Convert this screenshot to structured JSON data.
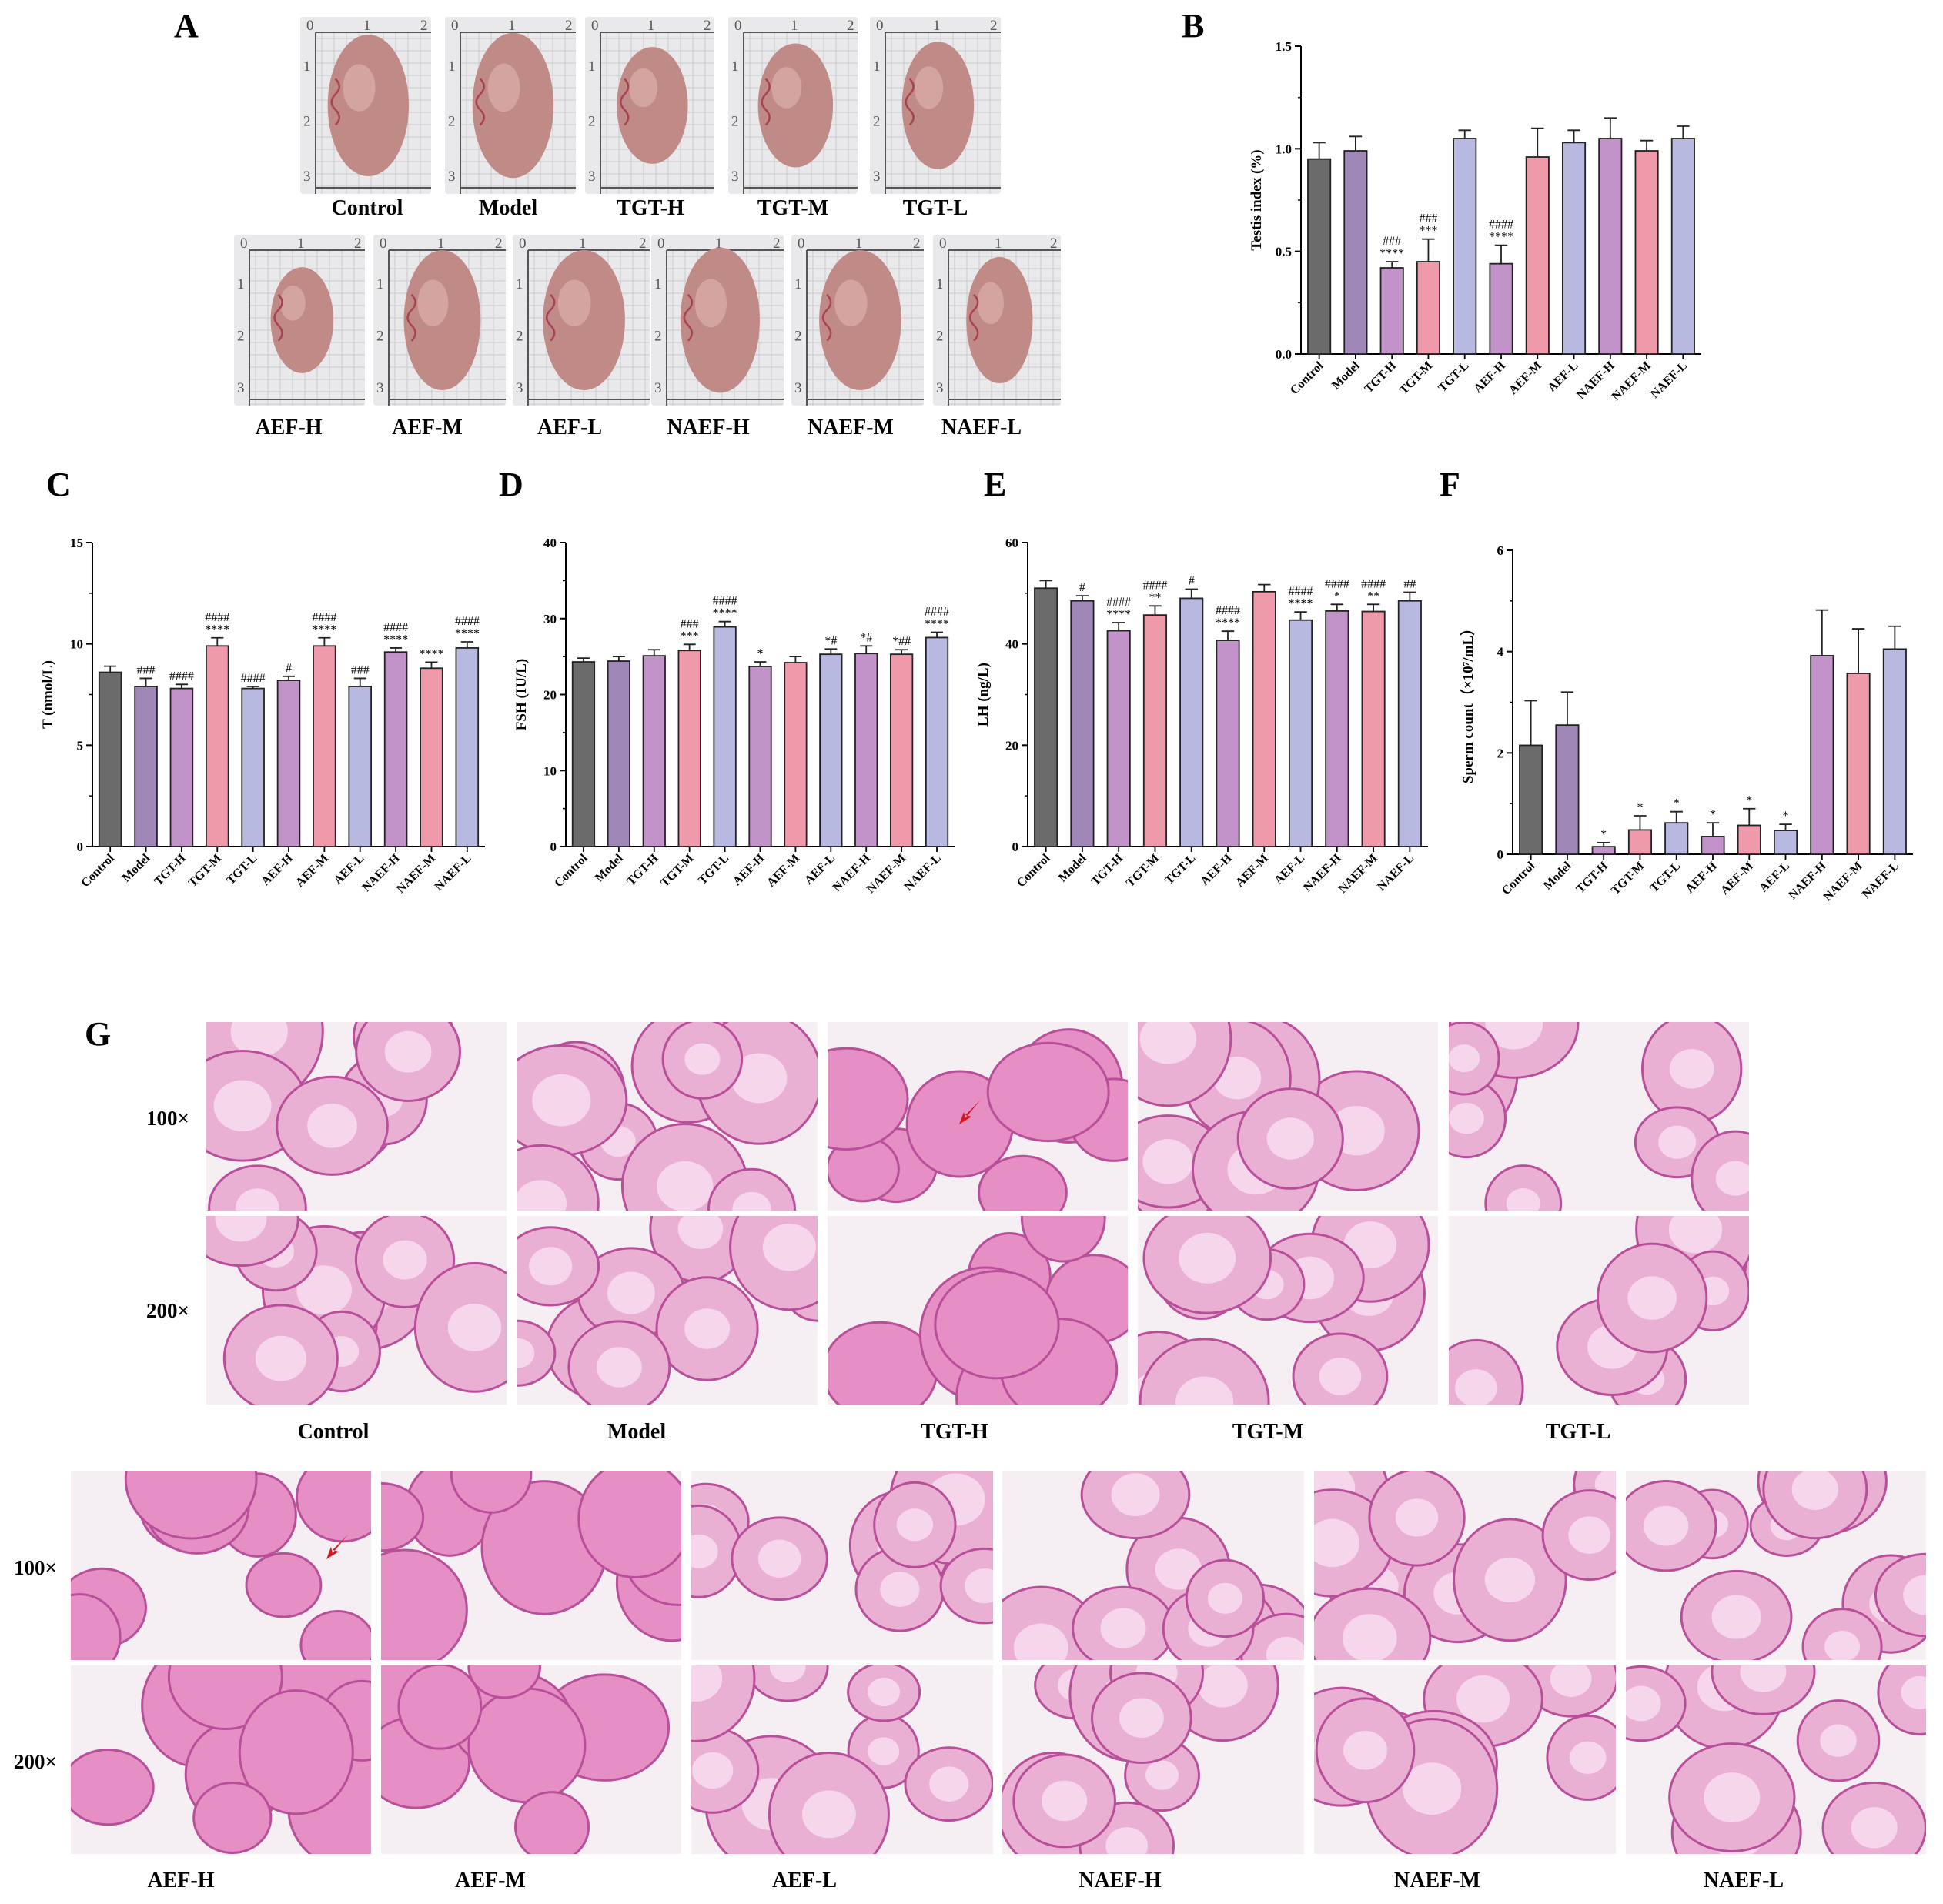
{
  "panel_a": {
    "letter": "A",
    "groups": [
      "Control",
      "Model",
      "TGT-H",
      "TGT-M",
      "TGT-L",
      "AEF-H",
      "AEF-M",
      "AEF-L",
      "NAEF-H",
      "NAEF-M",
      "NAEF-L"
    ],
    "scale_x": [
      "0",
      "1",
      "2"
    ],
    "scale_y": [
      "1",
      "2",
      "3"
    ]
  },
  "panel_g": {
    "letter": "G",
    "magnifications": [
      "100×",
      "200×"
    ],
    "groups": [
      "Control",
      "Model",
      "TGT-H",
      "TGT-M",
      "TGT-L",
      "AEF-H",
      "AEF-M",
      "AEF-L",
      "NAEF-H",
      "NAEF-M",
      "NAEF-L"
    ]
  },
  "colors": {
    "Control": "#6b6b6b",
    "Model": "#9f87b8",
    "TGT-H": "#c293c8",
    "TGT-M": "#ef9aaa",
    "TGT-L": "#b8b9e0",
    "AEF-H": "#c293c8",
    "AEF-M": "#ef9aaa",
    "AEF-L": "#b8b9e0",
    "NAEF-H": "#c293c8",
    "NAEF-M": "#ef9aaa",
    "NAEF-L": "#b8b9e0"
  },
  "chart_data": [
    {
      "id": "B",
      "letter": "B",
      "type": "bar",
      "ylabel": "Testis index (%)",
      "ylim": [
        0,
        1.5
      ],
      "yticks": [
        "0.0",
        "0.5",
        "1.0",
        "1.5"
      ],
      "categories": [
        "Control",
        "Model",
        "TGT-H",
        "TGT-M",
        "TGT-L",
        "AEF-H",
        "AEF-M",
        "AEF-L",
        "NAEF-H",
        "NAEF-M",
        "NAEF-L"
      ],
      "values": [
        0.95,
        0.99,
        0.42,
        0.45,
        1.05,
        0.44,
        0.96,
        1.03,
        1.05,
        0.99,
        1.05
      ],
      "errors": [
        0.08,
        0.07,
        0.03,
        0.11,
        0.04,
        0.09,
        0.14,
        0.06,
        0.1,
        0.05,
        0.06
      ],
      "annotations": [
        [
          "",
          ""
        ],
        [
          "",
          ""
        ],
        [
          "###",
          "****"
        ],
        [
          "###",
          "***"
        ],
        [
          "",
          ""
        ],
        [
          "####",
          "****"
        ],
        [
          "",
          ""
        ],
        [
          "",
          ""
        ],
        [
          "",
          ""
        ],
        [
          "",
          ""
        ],
        [
          "",
          ""
        ]
      ]
    },
    {
      "id": "C",
      "letter": "C",
      "type": "bar",
      "ylabel": "T (nmol/L)",
      "ylim": [
        0,
        15
      ],
      "yticks": [
        "0",
        "5",
        "10",
        "15"
      ],
      "categories": [
        "Control",
        "Model",
        "TGT-H",
        "TGT-M",
        "TGT-L",
        "AEF-H",
        "AEF-M",
        "AEF-L",
        "NAEF-H",
        "NAEF-M",
        "NAEF-L"
      ],
      "values": [
        8.6,
        7.9,
        7.8,
        9.9,
        7.8,
        8.2,
        9.9,
        7.9,
        9.6,
        8.8,
        9.8
      ],
      "errors": [
        0.3,
        0.4,
        0.2,
        0.4,
        0.1,
        0.2,
        0.4,
        0.4,
        0.2,
        0.3,
        0.3
      ],
      "annotations": [
        [
          "",
          ""
        ],
        [
          "",
          "###"
        ],
        [
          "",
          "####"
        ],
        [
          "####",
          "****"
        ],
        [
          "",
          "####"
        ],
        [
          "",
          "#"
        ],
        [
          "####",
          "****"
        ],
        [
          "",
          "###"
        ],
        [
          "####",
          "****"
        ],
        [
          "",
          "****"
        ],
        [
          "####",
          "****"
        ]
      ]
    },
    {
      "id": "D",
      "letter": "D",
      "type": "bar",
      "ylabel": "FSH (IU/L)",
      "ylim": [
        0,
        40
      ],
      "yticks": [
        "0",
        "10",
        "20",
        "30",
        "40"
      ],
      "categories": [
        "Control",
        "Model",
        "TGT-H",
        "TGT-M",
        "TGT-L",
        "AEF-H",
        "AEF-M",
        "AEF-L",
        "NAEF-H",
        "NAEF-M",
        "NAEF-L"
      ],
      "values": [
        24.3,
        24.4,
        25.1,
        25.8,
        28.9,
        23.7,
        24.2,
        25.3,
        25.4,
        25.3,
        27.5
      ],
      "errors": [
        0.5,
        0.6,
        0.8,
        0.8,
        0.7,
        0.6,
        0.8,
        0.7,
        1.0,
        0.6,
        0.7
      ],
      "annotations": [
        [
          "",
          ""
        ],
        [
          "",
          ""
        ],
        [
          "",
          ""
        ],
        [
          "###",
          "***"
        ],
        [
          "####",
          "****"
        ],
        [
          "",
          "*"
        ],
        [
          "",
          ""
        ],
        [
          "",
          "*#"
        ],
        [
          "",
          "*#"
        ],
        [
          "",
          "*##"
        ],
        [
          "####",
          "****"
        ]
      ]
    },
    {
      "id": "E",
      "letter": "E",
      "type": "bar",
      "ylabel": "LH (ng/L)",
      "ylim": [
        0,
        60
      ],
      "yticks": [
        "0",
        "20",
        "40",
        "60"
      ],
      "categories": [
        "Control",
        "Model",
        "TGT-H",
        "TGT-M",
        "TGT-L",
        "AEF-H",
        "AEF-M",
        "AEF-L",
        "NAEF-H",
        "NAEF-M",
        "NAEF-L"
      ],
      "values": [
        51.0,
        48.5,
        42.6,
        45.7,
        49.0,
        40.7,
        50.3,
        44.7,
        46.5,
        46.4,
        48.5
      ],
      "errors": [
        1.5,
        1.0,
        1.6,
        1.8,
        1.8,
        1.8,
        1.4,
        1.6,
        1.3,
        1.4,
        1.7
      ],
      "annotations": [
        [
          "",
          ""
        ],
        [
          "",
          "#"
        ],
        [
          "####",
          "****"
        ],
        [
          "####",
          "**"
        ],
        [
          "",
          "#"
        ],
        [
          "####",
          "****"
        ],
        [
          "",
          ""
        ],
        [
          "####",
          "****"
        ],
        [
          "####",
          "*"
        ],
        [
          "####",
          "**"
        ],
        [
          "",
          "##"
        ]
      ]
    },
    {
      "id": "F",
      "letter": "F",
      "type": "bar",
      "ylabel": "Sperm count（×10⁷/mL）",
      "ylim": [
        0,
        6
      ],
      "yticks": [
        "0",
        "2",
        "4",
        "6"
      ],
      "categories": [
        "Control",
        "Model",
        "TGT-H",
        "TGT-M",
        "TGT-L",
        "AEF-H",
        "AEF-M",
        "AEF-L",
        "NAEF-H",
        "NAEF-M",
        "NAEF-L"
      ],
      "values": [
        2.15,
        2.55,
        0.15,
        0.48,
        0.62,
        0.35,
        0.57,
        0.47,
        3.92,
        3.57,
        4.05
      ],
      "errors": [
        0.88,
        0.65,
        0.08,
        0.28,
        0.22,
        0.27,
        0.33,
        0.12,
        0.9,
        0.88,
        0.45
      ],
      "annotations": [
        [
          "",
          ""
        ],
        [
          "",
          ""
        ],
        [
          "",
          "*"
        ],
        [
          "",
          "*"
        ],
        [
          "",
          "*"
        ],
        [
          "",
          "*"
        ],
        [
          "",
          "*"
        ],
        [
          "",
          "*"
        ],
        [
          "",
          ""
        ],
        [
          "",
          ""
        ],
        [
          "",
          ""
        ]
      ]
    }
  ]
}
